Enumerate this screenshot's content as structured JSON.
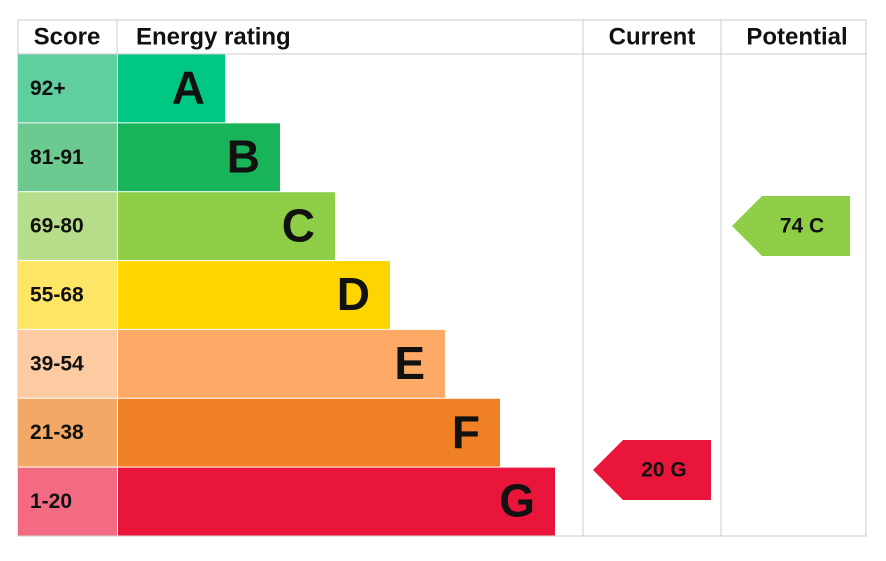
{
  "header": {
    "score": "Score",
    "energy_rating": "Energy rating",
    "current": "Current",
    "potential": "Potential"
  },
  "bands": [
    {
      "score": "92+",
      "letter": "A",
      "color": "#00c781",
      "score_color": "#5fcfa0"
    },
    {
      "score": "81-91",
      "letter": "B",
      "color": "#19b459",
      "score_color": "#6cc98f"
    },
    {
      "score": "69-80",
      "letter": "C",
      "color": "#8dce46",
      "score_color": "#b6de8a"
    },
    {
      "score": "55-68",
      "letter": "D",
      "color": "#ffd500",
      "score_color": "#ffe566"
    },
    {
      "score": "39-54",
      "letter": "E",
      "color": "#fcaa65",
      "score_color": "#fdcba1"
    },
    {
      "score": "21-38",
      "letter": "F",
      "color": "#ef8023",
      "score_color": "#f4a866"
    },
    {
      "score": "1-20",
      "letter": "G",
      "color": "#e9153b",
      "score_color": "#f26b83"
    }
  ],
  "current": {
    "label": "20 G",
    "color": "#e9153b"
  },
  "potential": {
    "label": "74 C",
    "color": "#8dce46"
  }
}
